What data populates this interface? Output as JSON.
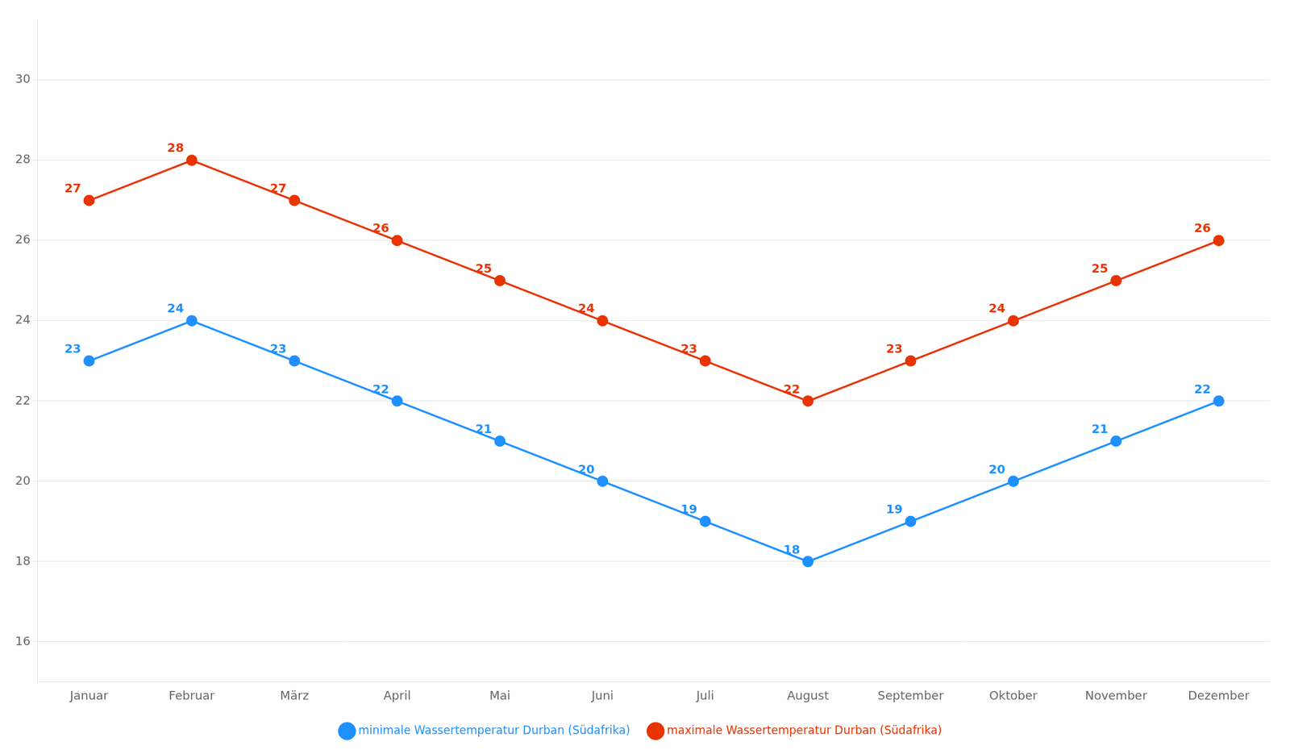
{
  "chart_data": {
    "type": "line",
    "categories": [
      "Januar",
      "Februar",
      "März",
      "April",
      "Mai",
      "Juni",
      "Juli",
      "August",
      "September",
      "Oktober",
      "November",
      "Dezember"
    ],
    "series": [
      {
        "name": "minimale Wassertemperatur Durban (Südafrika)",
        "color": "#1E90FF",
        "marker": "circle",
        "values": [
          23,
          24,
          23,
          22,
          21,
          20,
          19,
          18,
          19,
          20,
          21,
          22
        ]
      },
      {
        "name": "maximale Wassertemperatur Durban (Südafrika)",
        "color": "#E83400",
        "marker": "circle",
        "values": [
          27,
          28,
          27,
          26,
          25,
          24,
          23,
          22,
          23,
          24,
          25,
          26
        ]
      }
    ],
    "ylim": [
      15.0,
      31.5
    ],
    "yticks": [
      16,
      18,
      20,
      22,
      24,
      26,
      28,
      30
    ],
    "grid": true,
    "legend": "bottom",
    "data_labels": true
  }
}
